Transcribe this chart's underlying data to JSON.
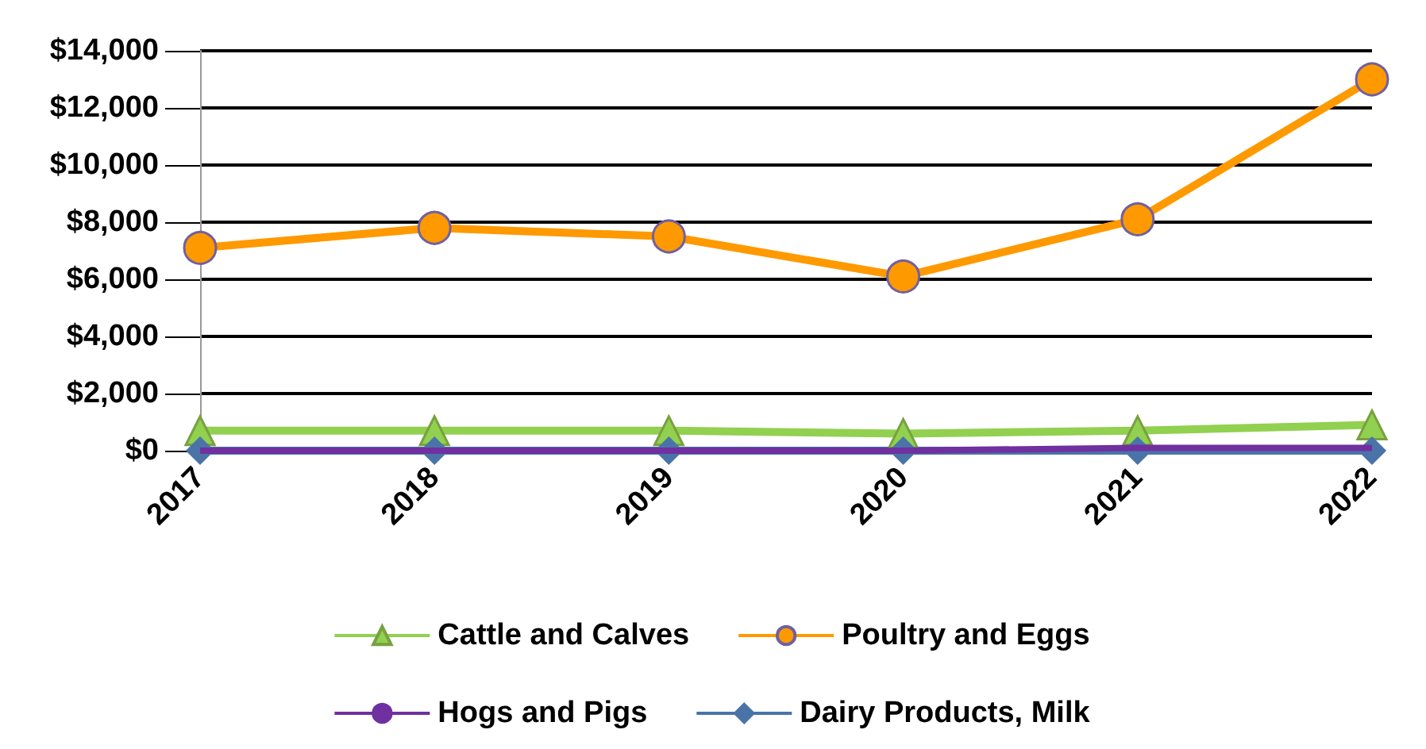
{
  "chart_data": {
    "type": "line",
    "categories": [
      "2017",
      "2018",
      "2019",
      "2020",
      "2021",
      "2022"
    ],
    "series": [
      {
        "name": "Cattle and Calves",
        "color": "#92d050",
        "marker": "triangle",
        "values": [
          700,
          700,
          700,
          600,
          700,
          900
        ]
      },
      {
        "name": "Poultry and Eggs",
        "color": "#ff9900",
        "marker": "circle",
        "values": [
          7100,
          7800,
          7500,
          6100,
          8100,
          13000
        ]
      },
      {
        "name": "Hogs and Pigs",
        "color": "#7030a0",
        "marker": "none",
        "values": [
          0,
          0,
          0,
          0,
          100,
          100
        ]
      },
      {
        "name": "Dairy Products, Milk",
        "color": "#4a74a8",
        "marker": "diamond",
        "values": [
          0,
          0,
          0,
          0,
          0,
          0
        ]
      }
    ],
    "ylim": [
      0,
      14000
    ],
    "yticks": [
      {
        "value": 0,
        "label": "$0"
      },
      {
        "value": 2000,
        "label": "$2,000"
      },
      {
        "value": 4000,
        "label": "$4,000"
      },
      {
        "value": 6000,
        "label": "$6,000"
      },
      {
        "value": 8000,
        "label": "$8,000"
      },
      {
        "value": 10000,
        "label": "$10,000"
      },
      {
        "value": 12000,
        "label": "$12,000"
      },
      {
        "value": 14000,
        "label": "$14,000"
      }
    ],
    "grid": "y",
    "legend": "bottom"
  }
}
